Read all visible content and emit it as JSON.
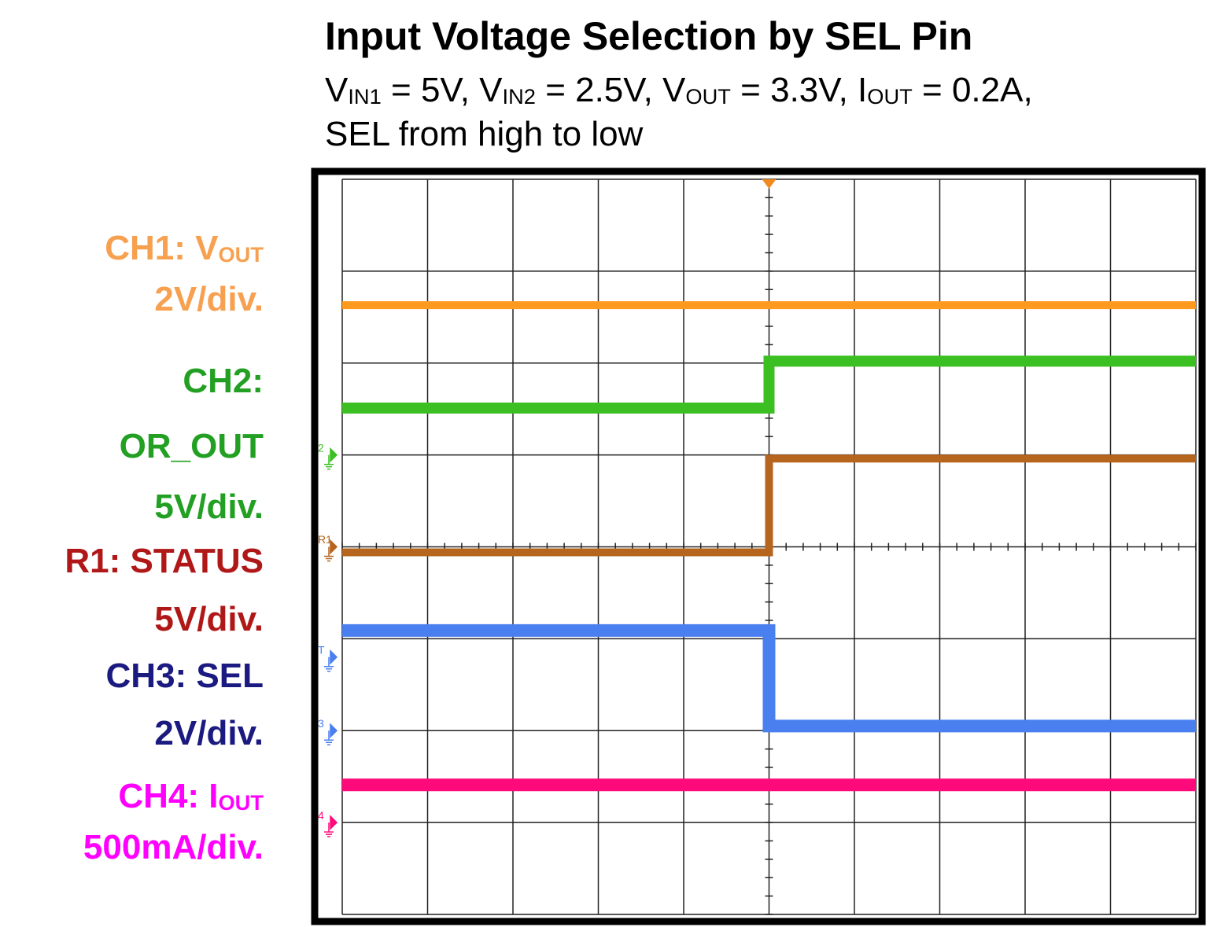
{
  "chart_data": {
    "type": "line",
    "title": "Input Voltage Selection by SEL Pin",
    "subtitle": [
      [
        "V",
        "IN1",
        " = 5V, V",
        "IN2",
        " = 2.5V, V",
        "OUT",
        " = 3.3V, I",
        "OUT",
        " = 0.2A,"
      ],
      [
        "SEL from high to low"
      ]
    ],
    "xlim": [
      0,
      10
    ],
    "ylim": [
      0,
      8
    ],
    "grid": true,
    "series": [
      {
        "label": [
          [
            "CH1: V",
            "OUT"
          ],
          [
            "2V/div."
          ]
        ],
        "color": "#ff9a1e",
        "label_color": "#f7a050",
        "x": [
          0,
          10
        ],
        "values": [
          6.63,
          6.63
        ]
      },
      {
        "label": [
          [
            "CH2:"
          ],
          [
            "OR_OUT"
          ],
          [
            "5V/div."
          ]
        ],
        "color": "#3cbf22",
        "label_color": "#23a023",
        "x": [
          0,
          5,
          5,
          10
        ],
        "values": [
          5.51,
          5.51,
          6.02,
          6.02
        ]
      },
      {
        "label": [
          [
            "R1: STATUS"
          ],
          [
            "5V/div."
          ]
        ],
        "color": "#b5651d",
        "label_color": "#b01818",
        "x": [
          0,
          5,
          5,
          10
        ],
        "values": [
          3.94,
          3.94,
          4.96,
          4.96
        ]
      },
      {
        "label": [
          [
            "CH3: SEL"
          ],
          [
            "2V/div."
          ]
        ],
        "color": "#4a7ff0",
        "label_color": "#1a1a80",
        "x": [
          0,
          5,
          5,
          10
        ],
        "values": [
          3.09,
          3.09,
          2.05,
          2.05
        ]
      },
      {
        "label": [
          [
            "CH4: I",
            "OUT"
          ],
          [
            "500mA/div."
          ]
        ],
        "color": "#ff0a7a",
        "label_color": "#ff00ff",
        "x": [
          0,
          10
        ],
        "values": [
          1.41,
          1.41
        ]
      }
    ],
    "ground_markers": [
      {
        "label": "2",
        "value": 5,
        "color": "#3cbf22"
      },
      {
        "label": "R1",
        "value": 4,
        "color": "#b5651d"
      },
      {
        "label": "T",
        "value": 2.8,
        "color": "#4a7ff0"
      },
      {
        "label": "3",
        "value": 2,
        "color": "#4a7ff0"
      },
      {
        "label": "4",
        "value": 1,
        "color": "#ff0a7a"
      }
    ]
  }
}
